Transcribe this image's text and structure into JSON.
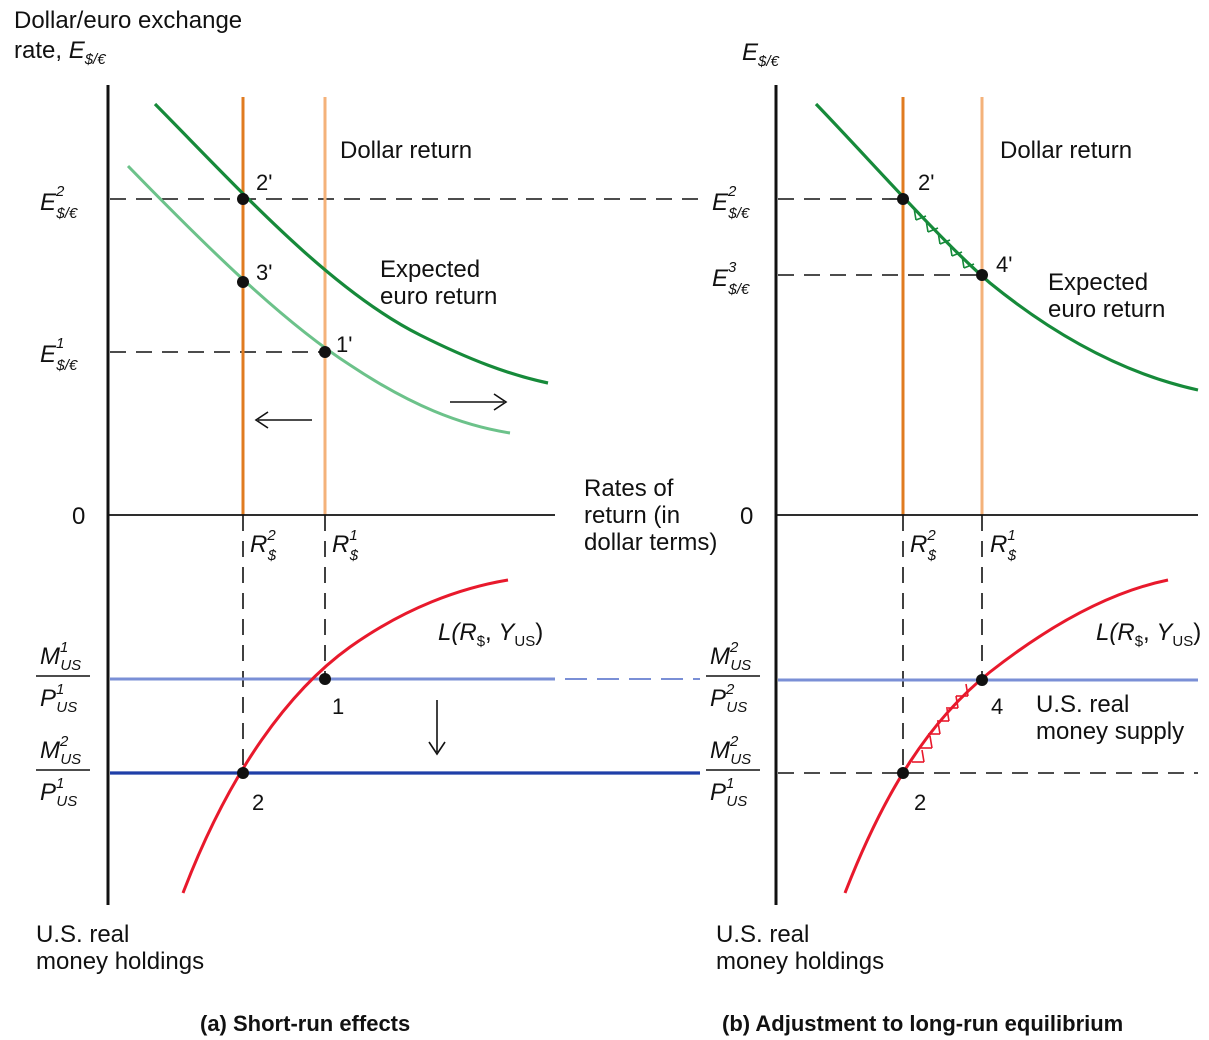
{
  "panel_a": {
    "caption": "(a) Short-run effects",
    "y_axis_label_line1": "Dollar/euro exchange",
    "y_axis_label_line2_prefix": "rate, ",
    "E_symbol": "E",
    "E_subscript": "$/€",
    "zero": "0",
    "dollar_return": "Dollar return",
    "expected_line1": "Expected",
    "expected_line2": "euro return",
    "x_axis_line1": "Rates of",
    "x_axis_line2": "return (in",
    "x_axis_line3": "dollar terms)",
    "bottom_label_line1": "U.S. real",
    "bottom_label_line2": "money holdings",
    "E2_sup": "2",
    "E1_sup": "1",
    "R_symbol": "R",
    "R_sub": "$",
    "R2_sup": "2",
    "R1_sup": "1",
    "point_2p": "2'",
    "point_3p": "3'",
    "point_1p": "1'",
    "point_1": "1",
    "point_2": "2",
    "L_label_prefix": "L(",
    "L_label_R": "R",
    "L_label_Rsub": "$",
    "L_label_comma": ", ",
    "L_label_Y": "Y",
    "L_label_Ysub": "US",
    "L_label_close": ")",
    "M": "M",
    "P": "P",
    "US": "US",
    "M1_sup": "1",
    "P1_sup": "1",
    "M2_sup": "2",
    "P1b_sup": "1",
    "arrow_left": "←",
    "arrow_right": "→",
    "arrow_down": "↓"
  },
  "panel_b": {
    "caption": "(b) Adjustment to long-run equilibrium",
    "E_symbol": "E",
    "E_subscript": "$/€",
    "zero": "0",
    "dollar_return": "Dollar return",
    "expected_line1": "Expected",
    "expected_line2": "euro return",
    "bottom_label_line1": "U.S. real",
    "bottom_label_line2": "money holdings",
    "supply_line1": "U.S. real",
    "supply_line2": "money supply",
    "E2_sup": "2",
    "E3_sup": "3",
    "R2_sup": "2",
    "R1_sup": "1",
    "point_2p": "2'",
    "point_4p": "4'",
    "point_4": "4",
    "point_2": "2",
    "M2a_sup": "2",
    "P2_sup": "2",
    "M2b_sup": "2",
    "P1_sup": "1"
  },
  "colors": {
    "dark_green": "#168a3a",
    "light_green": "#6cc28a",
    "dark_orange": "#e07b20",
    "light_orange": "#f4b27a",
    "red": "#e8192c",
    "dark_blue": "#1f3fa8",
    "light_blue": "#7a8fd6",
    "black": "#111111"
  }
}
